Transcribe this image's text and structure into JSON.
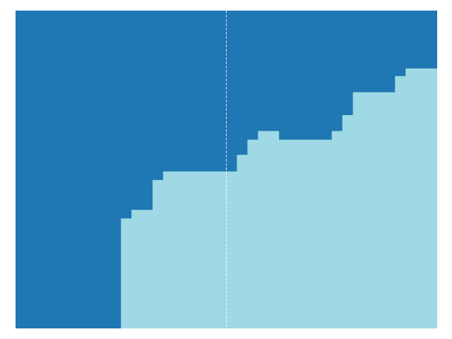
{
  "chart_data": {
    "type": "area",
    "title": "",
    "xlabel": "",
    "ylabel": "",
    "xlim": [
      0,
      40
    ],
    "ylim": [
      0,
      1
    ],
    "grid": false,
    "legend": "none",
    "vertical_line": {
      "x": 20,
      "style": "dashed",
      "color": "#ffffff"
    },
    "series": [
      {
        "color": "#9ed9e5",
        "steps_x": [
          0,
          1,
          2,
          3,
          4,
          5,
          6,
          7,
          8,
          9,
          10,
          11,
          12,
          13,
          14,
          15,
          16,
          17,
          18,
          19,
          20,
          21,
          22,
          23,
          24,
          25,
          26,
          27,
          28,
          29,
          30,
          31,
          32,
          33,
          34,
          35,
          36,
          37,
          38,
          39,
          40
        ],
        "boundary": [
          0,
          0,
          0,
          0,
          0,
          0,
          0,
          0,
          0,
          0,
          0.346,
          0.373,
          0.373,
          0.467,
          0.494,
          0.494,
          0.494,
          0.494,
          0.494,
          0.494,
          0.494,
          0.546,
          0.594,
          0.621,
          0.621,
          0.594,
          0.594,
          0.594,
          0.594,
          0.594,
          0.621,
          0.671,
          0.743,
          0.743,
          0.743,
          0.743,
          0.794,
          0.818,
          0.818,
          0.818
        ]
      },
      {
        "color": "#1f77b4",
        "fills_to": 1
      }
    ]
  }
}
